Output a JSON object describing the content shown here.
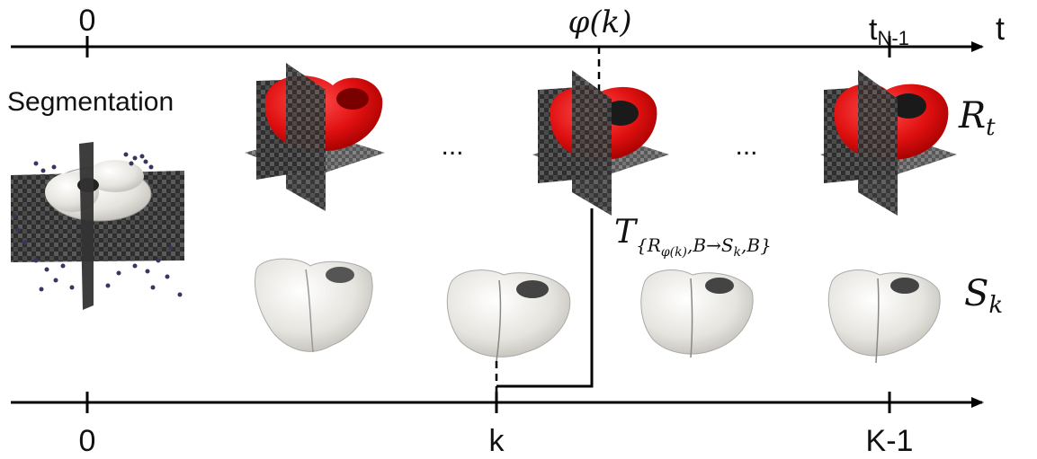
{
  "top_axis": {
    "tick_start": "0",
    "phi_label": "φ(k)",
    "tick_end": "t",
    "tick_end_sub": "N-1",
    "axis_label": "t"
  },
  "bottom_axis": {
    "tick_start": "0",
    "tick_k": "k",
    "tick_end": "K-1"
  },
  "segmentation_label": "Segmentation",
  "top_row_ellipsis": [
    "...",
    "..."
  ],
  "top_row_label": {
    "script": "R",
    "sub": "t"
  },
  "bottom_row_label": {
    "script": "S",
    "sub": "k"
  },
  "transform_label": {
    "symbol": "T",
    "sub": "{R",
    "sub2": "φ(k)",
    "sub3": ",B→S",
    "sub4": "k",
    "sub5": ",B}"
  },
  "colors": {
    "segmentation_red": "#e01010",
    "surface_white": "#e8e6e0",
    "mri_gray": "#555555",
    "point_cloud": "#3a3560",
    "axis": "#000000"
  }
}
